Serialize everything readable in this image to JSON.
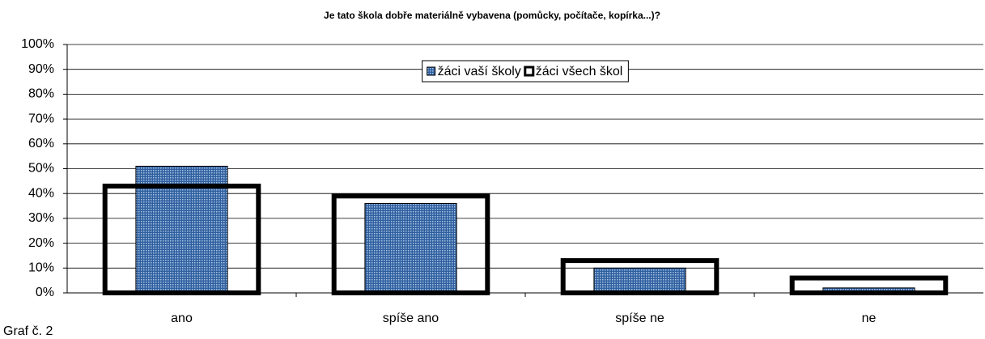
{
  "chart_data": {
    "type": "bar",
    "title": "Je tato škola dobře materiálně vybavena (pomůcky, počítače, kopírka...)?",
    "caption": "Graf č. 2",
    "categories": [
      "ano",
      "spíše ano",
      "spíše ne",
      "ne"
    ],
    "series": [
      {
        "name": "žáci vaší školy",
        "color": "#4a78b8",
        "values": [
          51,
          36,
          10,
          2
        ]
      },
      {
        "name": "žáci všech škol",
        "color": "#000000",
        "values": [
          43,
          39,
          13,
          6
        ]
      }
    ],
    "ylim": [
      0,
      100
    ],
    "yticks": [
      {
        "value": 0,
        "label": "0%"
      },
      {
        "value": 10,
        "label": "10%"
      },
      {
        "value": 20,
        "label": "20%"
      },
      {
        "value": 30,
        "label": "30%"
      },
      {
        "value": 40,
        "label": "40%"
      },
      {
        "value": 50,
        "label": "50%"
      },
      {
        "value": 60,
        "label": "60%"
      },
      {
        "value": 70,
        "label": "70%"
      },
      {
        "value": 80,
        "label": "80%"
      },
      {
        "value": 90,
        "label": "90%"
      },
      {
        "value": 100,
        "label": "100%"
      }
    ],
    "grid": true,
    "legend": "top"
  }
}
